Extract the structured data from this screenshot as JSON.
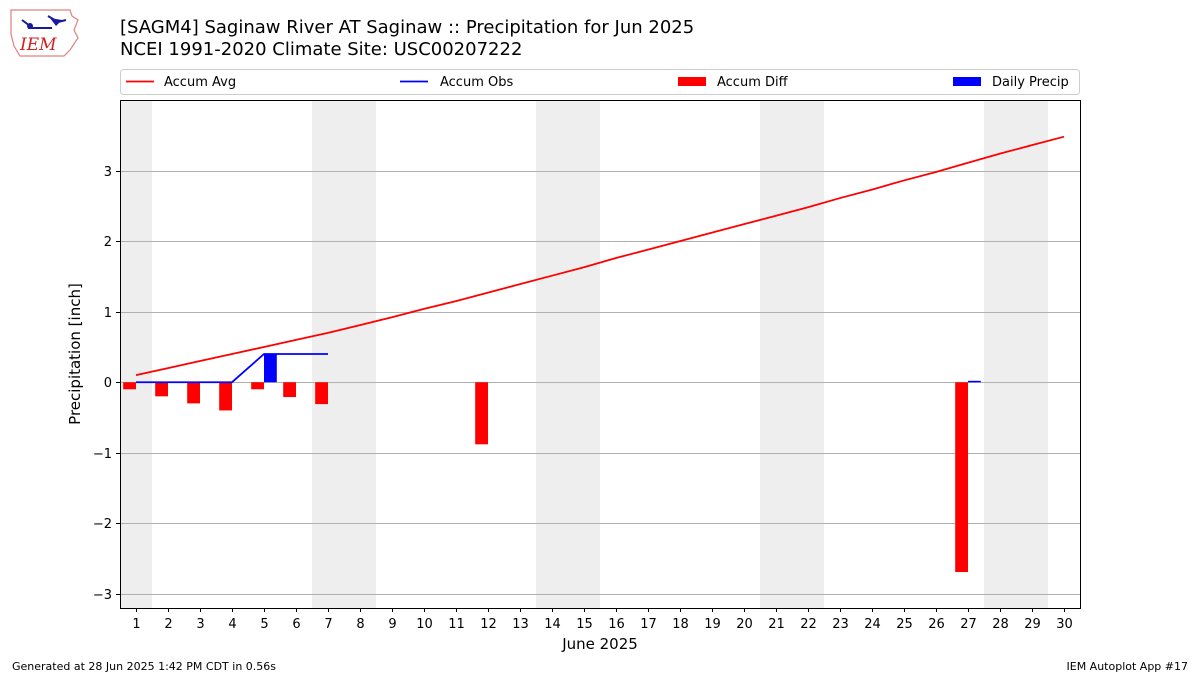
{
  "header": {
    "title_line1": "[SAGM4] Saginaw River  AT Saginaw :: Precipitation for Jun 2025",
    "title_line2": "NCEI 1991-2020 Climate Site: USC00207222",
    "logo_text": "IEM"
  },
  "footer": {
    "left": "Generated at 28 Jun 2025 1:42 PM CDT in 0.56s",
    "right": "IEM Autoplot App #17"
  },
  "chart_data": {
    "type": "bar",
    "xlabel": "June 2025",
    "ylabel": "Precipitation [inch]",
    "days": [
      1,
      2,
      3,
      4,
      5,
      6,
      7,
      8,
      9,
      10,
      11,
      12,
      13,
      14,
      15,
      16,
      17,
      18,
      19,
      20,
      21,
      22,
      23,
      24,
      25,
      26,
      27,
      28,
      29,
      30
    ],
    "ylim": [
      -3.2,
      4.0
    ],
    "yticks": [
      -3,
      -2,
      -1,
      0,
      1,
      2,
      3
    ],
    "ytick_labels": [
      "−3",
      "−2",
      "−1",
      "0",
      "1",
      "2",
      "3"
    ],
    "grid": "horizontal",
    "weekend_shading": [
      [
        1,
        1
      ],
      [
        7,
        8
      ],
      [
        14,
        15
      ],
      [
        21,
        22
      ],
      [
        28,
        29
      ]
    ],
    "legend": {
      "placement": "top",
      "entries": [
        {
          "label": "Accum Avg",
          "kind": "line",
          "color": "#ff0000"
        },
        {
          "label": "Accum Obs",
          "kind": "line",
          "color": "#0000ff"
        },
        {
          "label": "Accum Diff",
          "kind": "bar",
          "color": "#ff0000"
        },
        {
          "label": "Daily Precip",
          "kind": "bar",
          "color": "#0000ff"
        }
      ]
    },
    "series": [
      {
        "name": "Accum Avg",
        "type": "line",
        "color": "#ff0000",
        "days": [
          1,
          2,
          3,
          4,
          5,
          6,
          7,
          8,
          9,
          10,
          11,
          12,
          13,
          14,
          15,
          16,
          17,
          18,
          19,
          20,
          21,
          22,
          23,
          24,
          25,
          26,
          27,
          28,
          29,
          30
        ],
        "values": [
          0.1,
          0.2,
          0.3,
          0.4,
          0.5,
          0.6,
          0.7,
          0.81,
          0.92,
          1.04,
          1.15,
          1.27,
          1.39,
          1.51,
          1.63,
          1.76,
          1.88,
          2.0,
          2.12,
          2.24,
          2.36,
          2.48,
          2.61,
          2.73,
          2.86,
          2.98,
          3.11,
          3.24,
          3.36,
          3.48
        ]
      },
      {
        "name": "Accum Obs",
        "type": "line",
        "color": "#0000ff",
        "days": [
          1,
          2,
          3,
          4,
          5,
          6,
          7
        ],
        "values": [
          0.0,
          0.0,
          0.0,
          0.0,
          0.4,
          0.4,
          0.4
        ]
      },
      {
        "name": "Accum Diff",
        "type": "bar",
        "color": "#ff0000",
        "days": [
          1,
          2,
          3,
          4,
          5,
          6,
          7,
          12,
          27
        ],
        "values": [
          -0.1,
          -0.2,
          -0.3,
          -0.4,
          -0.1,
          -0.21,
          -0.31,
          -0.88,
          -2.69
        ]
      },
      {
        "name": "Daily Precip",
        "type": "bar",
        "color": "#0000ff",
        "days": [
          5,
          27
        ],
        "values": [
          0.4,
          0.02
        ]
      }
    ]
  }
}
